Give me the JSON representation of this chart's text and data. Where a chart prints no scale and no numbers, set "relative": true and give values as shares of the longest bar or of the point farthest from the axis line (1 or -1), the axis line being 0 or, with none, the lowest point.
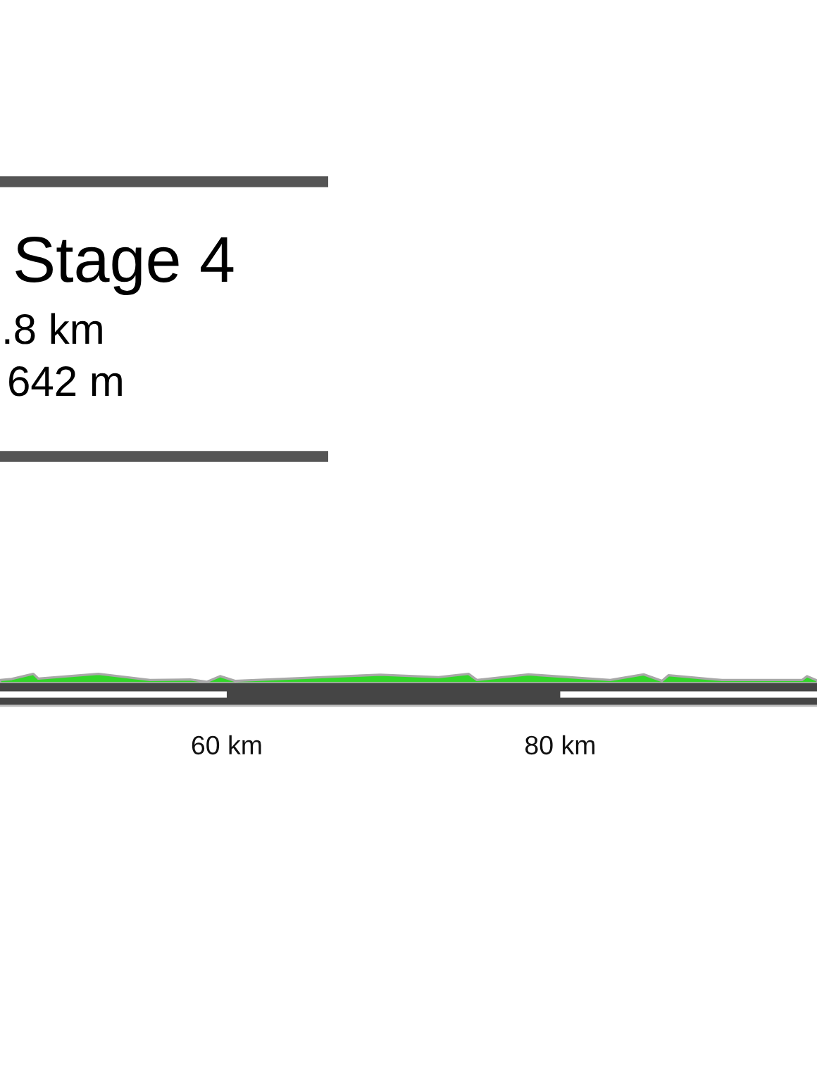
{
  "chart_data": {
    "type": "area",
    "title": "Stage 4",
    "annotations": [
      ".8 km",
      "642 m"
    ],
    "relative": true,
    "color": "#33d62a",
    "x": [
      46.4,
      47.1,
      48.4,
      48.7,
      52.3,
      55.4,
      57.8,
      58.8,
      59.6,
      60.5,
      69.2,
      72.7,
      74.5,
      75.0,
      78.1,
      83.0,
      85.0,
      86.1,
      86.5,
      89.7,
      94.5,
      94.8,
      95.4
    ],
    "values": [
      0.34,
      0.45,
      1,
      0.49,
      1,
      0.34,
      0.4,
      0.15,
      0.75,
      0.25,
      0.9,
      0.64,
      1,
      0.34,
      0.94,
      0.34,
      0.94,
      0.25,
      0.85,
      0.34,
      0.34,
      0.75,
      0.3
    ],
    "xlim": [
      46.4,
      95.4
    ],
    "xticks": [
      {
        "value": 60,
        "label": "60 km"
      },
      {
        "value": 80,
        "label": "80 km"
      }
    ]
  }
}
